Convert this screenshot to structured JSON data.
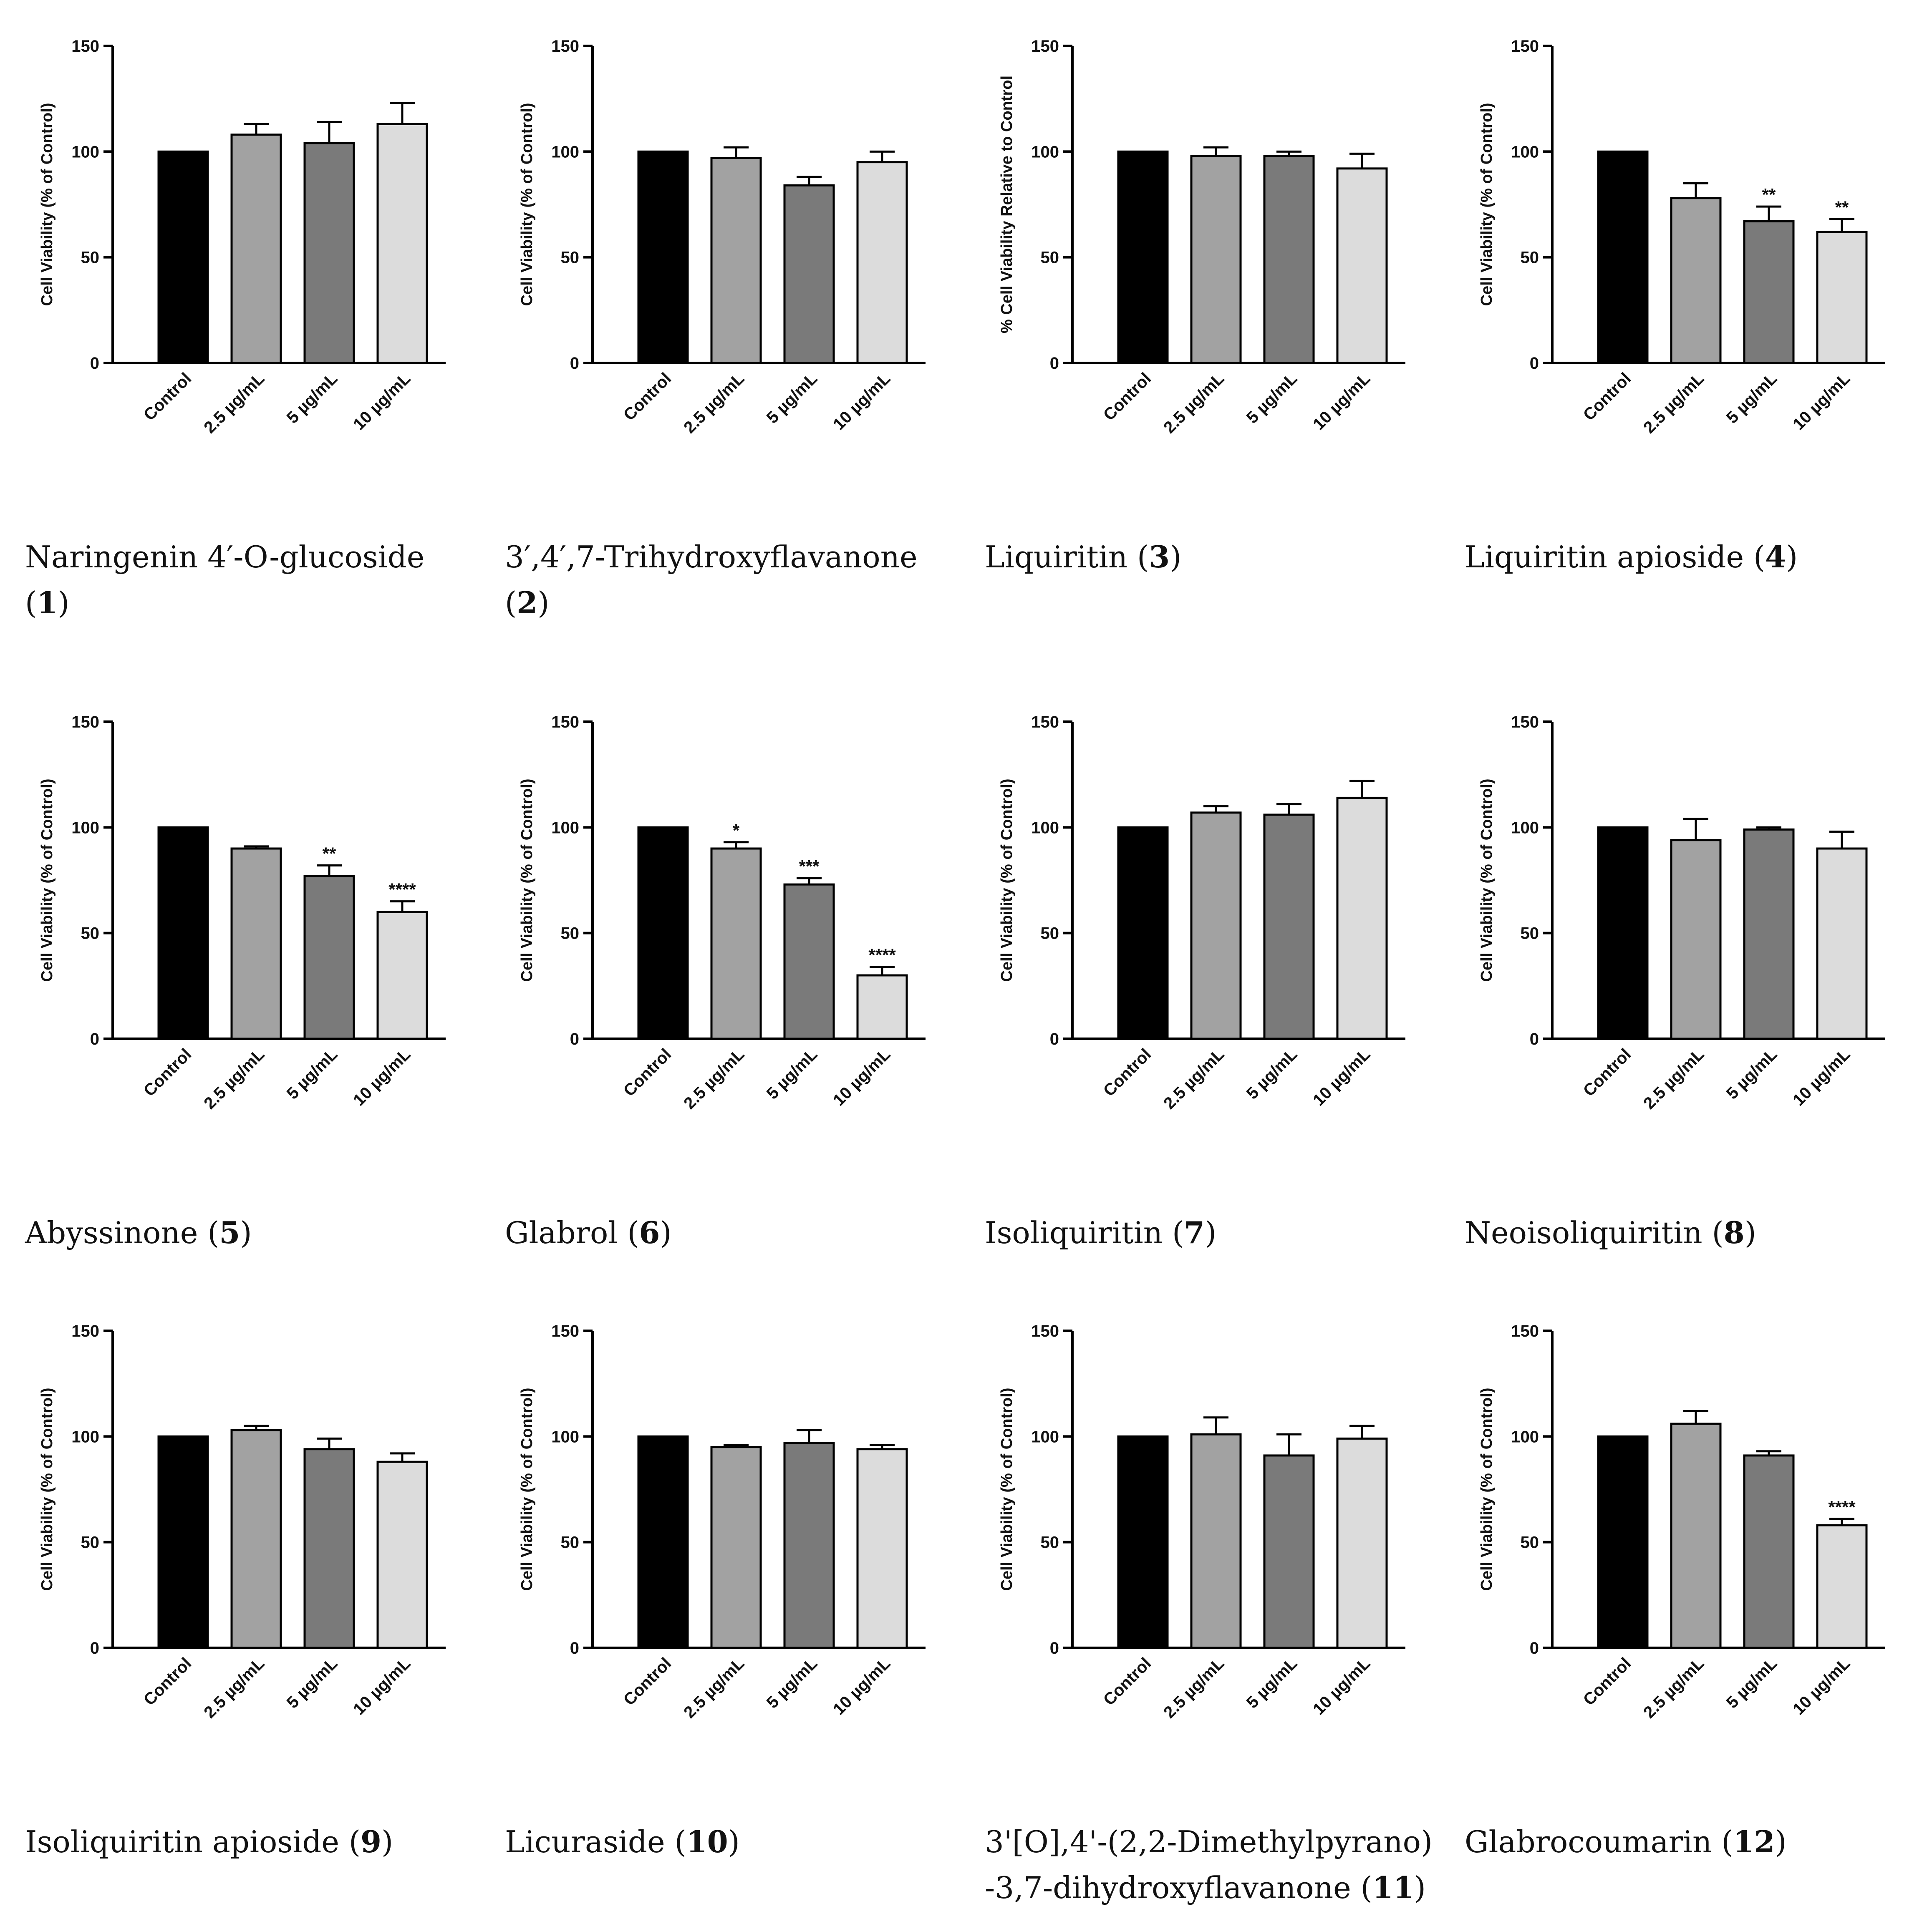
{
  "chart_data": [
    {
      "type": "bar",
      "categories": [
        "Control",
        "2.5 µg/mL",
        "5 µg/mL",
        "10 µg/mL"
      ],
      "values": [
        100,
        108,
        104,
        113
      ],
      "errors": [
        0,
        5,
        10,
        10
      ],
      "significance": [
        "",
        "",
        "",
        ""
      ],
      "ylabel": "Cell Viability (% of Control)",
      "ylim": [
        0,
        150
      ],
      "yticks": [
        0,
        50,
        100,
        150
      ],
      "caption_name": "Naringenin 4′-O-glucoside",
      "caption_number": "1"
    },
    {
      "type": "bar",
      "categories": [
        "Control",
        "2.5 µg/mL",
        "5 µg/mL",
        "10 µg/mL"
      ],
      "values": [
        100,
        97,
        84,
        95
      ],
      "errors": [
        0,
        5,
        4,
        5
      ],
      "significance": [
        "",
        "",
        "",
        ""
      ],
      "ylabel": "Cell Viability (% of Control)",
      "ylim": [
        0,
        150
      ],
      "yticks": [
        0,
        50,
        100,
        150
      ],
      "caption_name": "3′,4′,7-Trihydroxyflavanone",
      "caption_number": "2"
    },
    {
      "type": "bar",
      "categories": [
        "Control",
        "2.5 µg/mL",
        "5 µg/mL",
        "10 µg/mL"
      ],
      "values": [
        100,
        98,
        98,
        92
      ],
      "errors": [
        0,
        4,
        2,
        7
      ],
      "significance": [
        "",
        "",
        "",
        ""
      ],
      "ylabel": "% Cell Viability Relative to Control",
      "ylim": [
        0,
        150
      ],
      "yticks": [
        0,
        50,
        100,
        150
      ],
      "caption_name": "Liquiritin",
      "caption_number": "3"
    },
    {
      "type": "bar",
      "categories": [
        "Control",
        "2.5 µg/mL",
        "5 µg/mL",
        "10 µg/mL"
      ],
      "values": [
        100,
        78,
        67,
        62
      ],
      "errors": [
        0,
        7,
        7,
        6
      ],
      "significance": [
        "",
        "",
        "**",
        "**"
      ],
      "ylabel": "Cell Viability (% of Control)",
      "ylim": [
        0,
        150
      ],
      "yticks": [
        0,
        50,
        100,
        150
      ],
      "caption_name": "Liquiritin apioside",
      "caption_number": "4"
    },
    {
      "type": "bar",
      "categories": [
        "Control",
        "2.5 µg/mL",
        "5 µg/mL",
        "10 µg/mL"
      ],
      "values": [
        100,
        90,
        77,
        60
      ],
      "errors": [
        0,
        1,
        5,
        5
      ],
      "significance": [
        "",
        "",
        "**",
        "****"
      ],
      "ylabel": "Cell Viability (% of Control)",
      "ylim": [
        0,
        150
      ],
      "yticks": [
        0,
        50,
        100,
        150
      ],
      "caption_name": "Abyssinone",
      "caption_number": "5"
    },
    {
      "type": "bar",
      "categories": [
        "Control",
        "2.5 µg/mL",
        "5 µg/mL",
        "10 µg/mL"
      ],
      "values": [
        100,
        90,
        73,
        30
      ],
      "errors": [
        0,
        3,
        3,
        4
      ],
      "significance": [
        "",
        "*",
        "***",
        "****"
      ],
      "ylabel": "Cell Viability (% of Control)",
      "ylim": [
        0,
        150
      ],
      "yticks": [
        0,
        50,
        100,
        150
      ],
      "caption_name": "Glabrol",
      "caption_number": "6"
    },
    {
      "type": "bar",
      "categories": [
        "Control",
        "2.5 µg/mL",
        "5 µg/mL",
        "10 µg/mL"
      ],
      "values": [
        100,
        107,
        106,
        114
      ],
      "errors": [
        0,
        3,
        5,
        8
      ],
      "significance": [
        "",
        "",
        "",
        ""
      ],
      "ylabel": "Cell Viability (% of Control)",
      "ylim": [
        0,
        150
      ],
      "yticks": [
        0,
        50,
        100,
        150
      ],
      "caption_name": "Isoliquiritin",
      "caption_number": "7"
    },
    {
      "type": "bar",
      "categories": [
        "Control",
        "2.5 µg/mL",
        "5 µg/mL",
        "10 µg/mL"
      ],
      "values": [
        100,
        94,
        99,
        90
      ],
      "errors": [
        0,
        10,
        1,
        8
      ],
      "significance": [
        "",
        "",
        "",
        ""
      ],
      "ylabel": "Cell Viability (% of Control)",
      "ylim": [
        0,
        150
      ],
      "yticks": [
        0,
        50,
        100,
        150
      ],
      "caption_name": "Neoisoliquiritin",
      "caption_number": "8"
    },
    {
      "type": "bar",
      "categories": [
        "Control",
        "2.5 µg/mL",
        "5 µg/mL",
        "10 µg/mL"
      ],
      "values": [
        100,
        103,
        94,
        88
      ],
      "errors": [
        0,
        2,
        5,
        4
      ],
      "significance": [
        "",
        "",
        "",
        ""
      ],
      "ylabel": "Cell Viability (% of Control)",
      "ylim": [
        0,
        150
      ],
      "yticks": [
        0,
        50,
        100,
        150
      ],
      "caption_name": "Isoliquiritin apioside",
      "caption_number": "9"
    },
    {
      "type": "bar",
      "categories": [
        "Control",
        "2.5 µg/mL",
        "5 µg/mL",
        "10 µg/mL"
      ],
      "values": [
        100,
        95,
        97,
        94
      ],
      "errors": [
        0,
        1,
        6,
        2
      ],
      "significance": [
        "",
        "",
        "",
        ""
      ],
      "ylabel": "Cell Viability (% of Control)",
      "ylim": [
        0,
        150
      ],
      "yticks": [
        0,
        50,
        100,
        150
      ],
      "caption_name": "Licuraside",
      "caption_number": "10"
    },
    {
      "type": "bar",
      "categories": [
        "Control",
        "2.5 µg/mL",
        "5 µg/mL",
        "10 µg/mL"
      ],
      "values": [
        100,
        101,
        91,
        99
      ],
      "errors": [
        0,
        8,
        10,
        6
      ],
      "significance": [
        "",
        "",
        "",
        ""
      ],
      "ylabel": "Cell Viability (% of Control)",
      "ylim": [
        0,
        150
      ],
      "yticks": [
        0,
        50,
        100,
        150
      ],
      "caption_name": "3'[O],4'-(2,2-Dimethylpyrano) -3,7-dihydroxyflavanone",
      "caption_number": "11"
    },
    {
      "type": "bar",
      "categories": [
        "Control",
        "2.5 µg/mL",
        "5 µg/mL",
        "10 µg/mL"
      ],
      "values": [
        100,
        106,
        91,
        58
      ],
      "errors": [
        0,
        6,
        2,
        3
      ],
      "significance": [
        "",
        "",
        "",
        "****"
      ],
      "ylabel": "Cell Viability (% of Control)",
      "ylim": [
        0,
        150
      ],
      "yticks": [
        0,
        50,
        100,
        150
      ],
      "caption_name": "Glabrocoumarin",
      "caption_number": "12"
    }
  ],
  "colors": {
    "bar_fills": [
      "#000000",
      "#a2a2a2",
      "#7a7a7a",
      "#dcdcdc"
    ],
    "axis": "#000000"
  }
}
